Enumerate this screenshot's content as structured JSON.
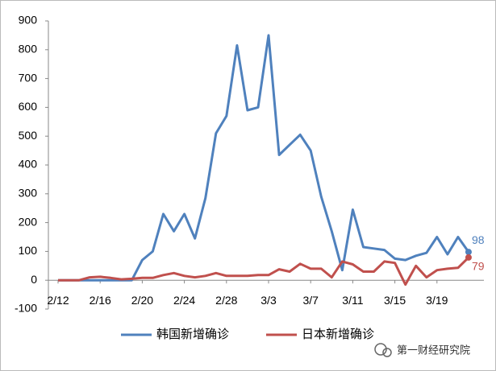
{
  "chart_data": {
    "type": "line",
    "categories": [
      "2/12",
      null,
      null,
      null,
      "2/16",
      null,
      null,
      null,
      "2/20",
      null,
      null,
      null,
      "2/24",
      null,
      null,
      null,
      "2/28",
      null,
      null,
      null,
      "3/3",
      null,
      null,
      null,
      "3/7",
      null,
      null,
      null,
      "3/11",
      null,
      null,
      null,
      "3/15",
      null,
      null,
      null,
      "3/19",
      null,
      null,
      null
    ],
    "series": [
      {
        "name": "韩国新增确诊",
        "color": "#4f81bd",
        "values": [
          0,
          0,
          0,
          0,
          0,
          0,
          0,
          0,
          70,
          100,
          230,
          170,
          230,
          145,
          285,
          510,
          570,
          815,
          590,
          600,
          850,
          435,
          470,
          505,
          450,
          290,
          170,
          35,
          245,
          115,
          110,
          105,
          75,
          70,
          85,
          95,
          150,
          90,
          150,
          98
        ]
      },
      {
        "name": "日本新增确诊",
        "color": "#c0504d",
        "values": [
          0,
          0,
          0,
          10,
          12,
          8,
          3,
          5,
          8,
          8,
          18,
          25,
          15,
          10,
          15,
          25,
          15,
          15,
          15,
          18,
          18,
          38,
          30,
          57,
          40,
          40,
          10,
          65,
          55,
          30,
          30,
          65,
          60,
          -15,
          50,
          10,
          35,
          40,
          43,
          79
        ]
      }
    ],
    "ylim": [
      -100,
      900
    ],
    "yticks": [
      -100,
      0,
      100,
      200,
      300,
      400,
      500,
      600,
      700,
      800,
      900
    ],
    "grid": false,
    "legend": "bottom",
    "watermark": "第一财经研究院"
  }
}
